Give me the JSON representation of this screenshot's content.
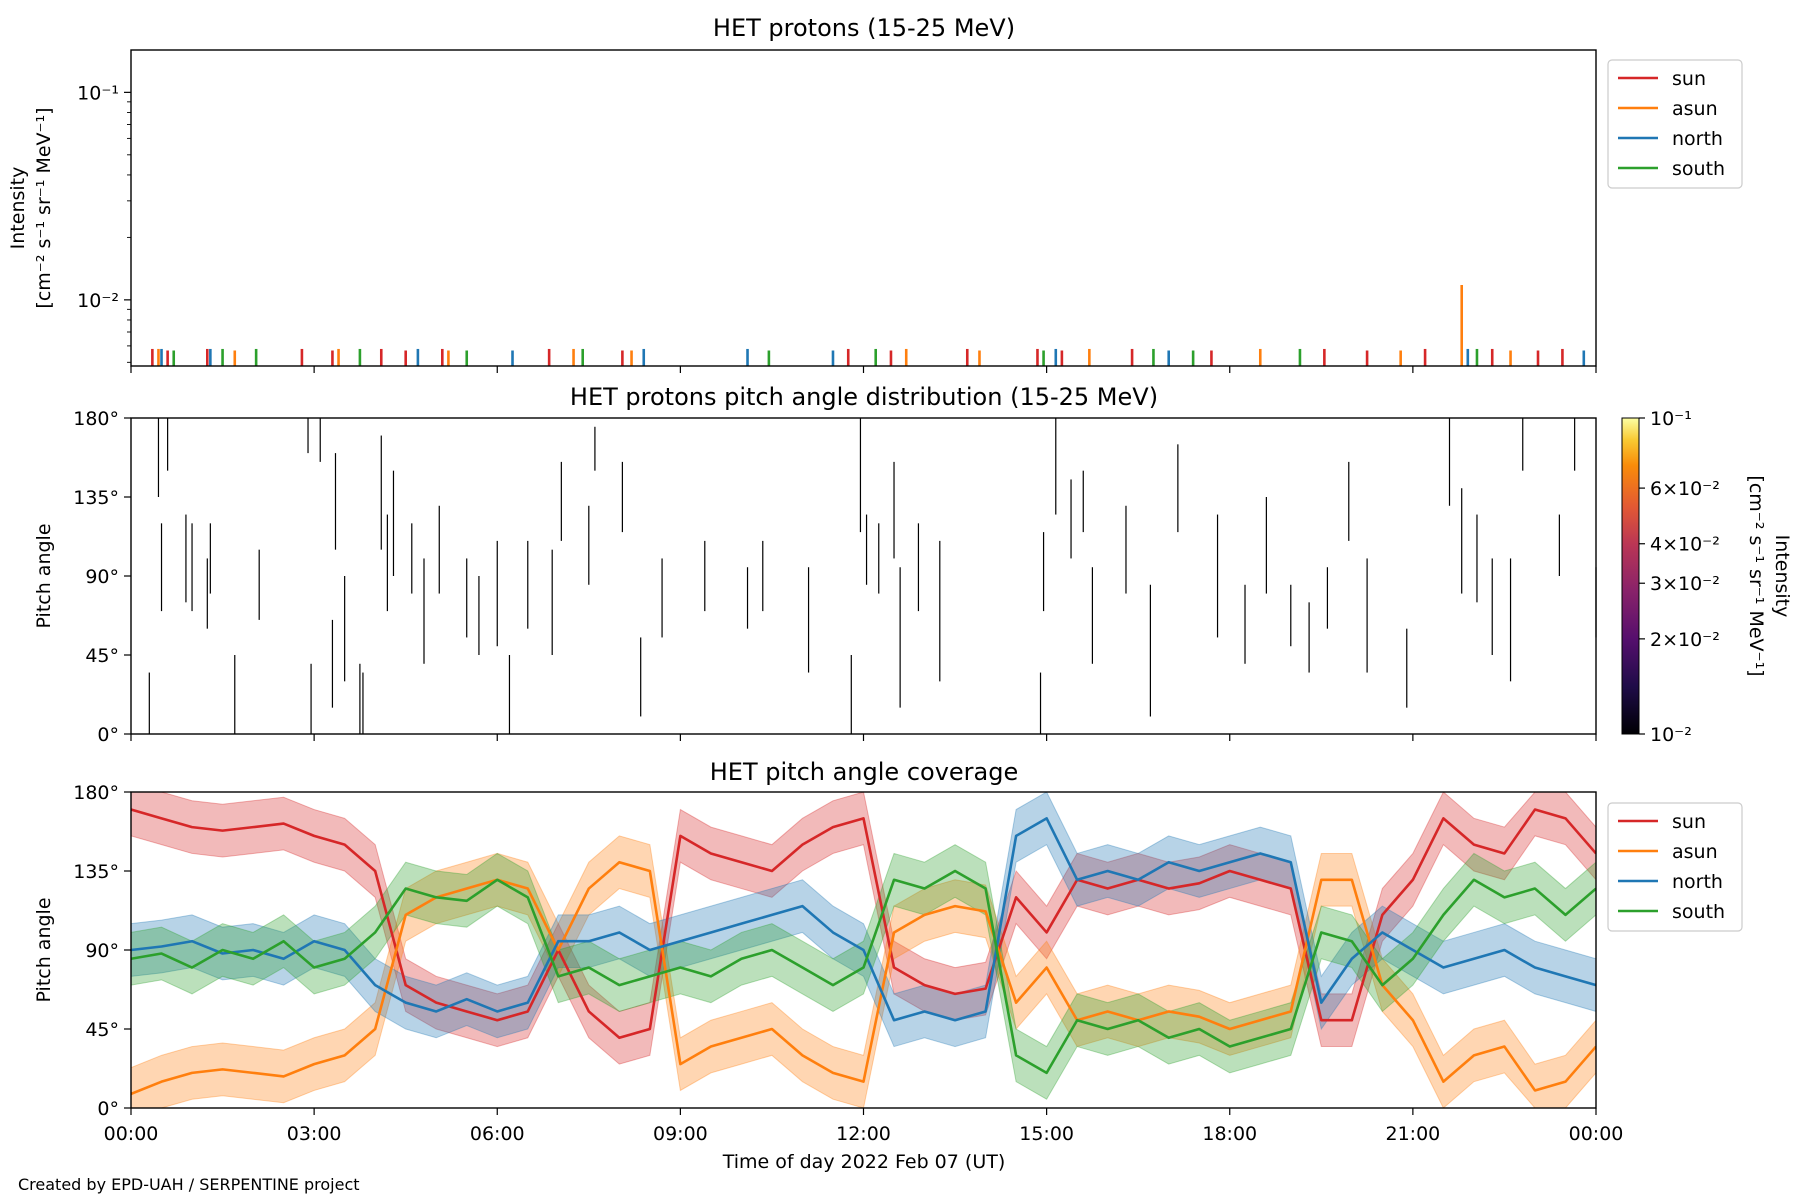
{
  "chart_data": [
    {
      "type": "line",
      "title": "HET protons (15-25 MeV)",
      "ylabel": "Intensity",
      "ylabel_units": "[cm⁻² s⁻¹ sr⁻¹ MeV⁻¹]",
      "yscale": "log",
      "ylim": [
        0.0048,
        0.16
      ],
      "yticks": [
        {
          "value": 0.01,
          "label": "10⁻²"
        },
        {
          "value": 0.1,
          "label": "10⁻¹"
        }
      ],
      "xlim": [
        0,
        24
      ],
      "legend": {
        "placement": "outside-right",
        "entries": [
          "sun",
          "asun",
          "north",
          "south"
        ]
      },
      "series": [
        {
          "name": "sun",
          "color": "#d62728",
          "spikes": [
            {
              "x": 0.35,
              "y": 0.0058
            },
            {
              "x": 0.6,
              "y": 0.0057
            },
            {
              "x": 1.25,
              "y": 0.0058
            },
            {
              "x": 2.8,
              "y": 0.0058
            },
            {
              "x": 3.3,
              "y": 0.0057
            },
            {
              "x": 4.1,
              "y": 0.0058
            },
            {
              "x": 4.5,
              "y": 0.0057
            },
            {
              "x": 5.1,
              "y": 0.0058
            },
            {
              "x": 6.85,
              "y": 0.0058
            },
            {
              "x": 8.05,
              "y": 0.0057
            },
            {
              "x": 11.75,
              "y": 0.0058
            },
            {
              "x": 12.45,
              "y": 0.0057
            },
            {
              "x": 13.7,
              "y": 0.0058
            },
            {
              "x": 14.85,
              "y": 0.0058
            },
            {
              "x": 15.25,
              "y": 0.0057
            },
            {
              "x": 16.4,
              "y": 0.0058
            },
            {
              "x": 17.7,
              "y": 0.0057
            },
            {
              "x": 19.55,
              "y": 0.0058
            },
            {
              "x": 20.25,
              "y": 0.0057
            },
            {
              "x": 21.2,
              "y": 0.0058
            },
            {
              "x": 22.3,
              "y": 0.0058
            },
            {
              "x": 23.05,
              "y": 0.0057
            },
            {
              "x": 23.45,
              "y": 0.0058
            }
          ]
        },
        {
          "name": "asun",
          "color": "#ff7f0e",
          "spikes": [
            {
              "x": 0.45,
              "y": 0.0058
            },
            {
              "x": 1.7,
              "y": 0.0057
            },
            {
              "x": 3.4,
              "y": 0.0058
            },
            {
              "x": 5.2,
              "y": 0.0057
            },
            {
              "x": 7.25,
              "y": 0.0058
            },
            {
              "x": 8.2,
              "y": 0.0057
            },
            {
              "x": 12.7,
              "y": 0.0058
            },
            {
              "x": 13.9,
              "y": 0.0057
            },
            {
              "x": 15.7,
              "y": 0.0058
            },
            {
              "x": 18.5,
              "y": 0.0058
            },
            {
              "x": 20.8,
              "y": 0.0057
            },
            {
              "x": 21.8,
              "y": 0.0118
            },
            {
              "x": 22.6,
              "y": 0.0057
            }
          ]
        },
        {
          "name": "north",
          "color": "#1f77b4",
          "spikes": [
            {
              "x": 0.5,
              "y": 0.0058
            },
            {
              "x": 1.3,
              "y": 0.0058
            },
            {
              "x": 4.7,
              "y": 0.0058
            },
            {
              "x": 6.25,
              "y": 0.0057
            },
            {
              "x": 8.4,
              "y": 0.0058
            },
            {
              "x": 10.1,
              "y": 0.0058
            },
            {
              "x": 11.5,
              "y": 0.0057
            },
            {
              "x": 15.15,
              "y": 0.0058
            },
            {
              "x": 17.0,
              "y": 0.0057
            },
            {
              "x": 21.9,
              "y": 0.0058
            },
            {
              "x": 23.8,
              "y": 0.0057
            }
          ]
        },
        {
          "name": "south",
          "color": "#2ca02c",
          "spikes": [
            {
              "x": 0.7,
              "y": 0.0057
            },
            {
              "x": 1.5,
              "y": 0.0058
            },
            {
              "x": 2.05,
              "y": 0.0058
            },
            {
              "x": 3.75,
              "y": 0.0058
            },
            {
              "x": 5.5,
              "y": 0.0057
            },
            {
              "x": 7.4,
              "y": 0.0058
            },
            {
              "x": 10.45,
              "y": 0.0057
            },
            {
              "x": 12.2,
              "y": 0.0058
            },
            {
              "x": 14.95,
              "y": 0.0057
            },
            {
              "x": 16.75,
              "y": 0.0058
            },
            {
              "x": 17.4,
              "y": 0.0057
            },
            {
              "x": 19.15,
              "y": 0.0058
            },
            {
              "x": 22.05,
              "y": 0.0058
            }
          ]
        }
      ]
    },
    {
      "type": "heatmap",
      "title": "HET protons pitch angle distribution (15-25 MeV)",
      "ylabel": "Pitch angle",
      "ylim": [
        0,
        180
      ],
      "yticklabels": [
        "0°",
        "45°",
        "90°",
        "135°",
        "180°"
      ],
      "xlim": [
        0,
        24
      ],
      "colorbar": {
        "label": "Intensity",
        "units": "[cm⁻² s⁻¹ sr⁻¹ MeV⁻¹]",
        "scale": "log",
        "range": [
          0.01,
          0.1
        ],
        "colormap": "inferno",
        "tick_labels": [
          "10⁻²",
          "2×10⁻²",
          "3×10⁻²",
          "4×10⁻²",
          "6×10⁻²",
          "10⁻¹"
        ]
      },
      "segments": [
        [
          0.3,
          0,
          35
        ],
        [
          0.45,
          135,
          180
        ],
        [
          0.5,
          70,
          120
        ],
        [
          0.6,
          150,
          180
        ],
        [
          0.9,
          75,
          125
        ],
        [
          1.0,
          70,
          120
        ],
        [
          1.25,
          60,
          100
        ],
        [
          1.3,
          80,
          120
        ],
        [
          1.7,
          0,
          45
        ],
        [
          2.1,
          65,
          105
        ],
        [
          2.9,
          160,
          180
        ],
        [
          2.95,
          0,
          40
        ],
        [
          3.1,
          155,
          180
        ],
        [
          3.3,
          15,
          65
        ],
        [
          3.35,
          105,
          160
        ],
        [
          3.5,
          30,
          90
        ],
        [
          3.75,
          0,
          40
        ],
        [
          3.8,
          0,
          35
        ],
        [
          4.1,
          105,
          170
        ],
        [
          4.2,
          70,
          125
        ],
        [
          4.3,
          90,
          150
        ],
        [
          4.6,
          80,
          120
        ],
        [
          4.8,
          40,
          100
        ],
        [
          5.05,
          80,
          130
        ],
        [
          5.5,
          55,
          100
        ],
        [
          5.7,
          45,
          90
        ],
        [
          6.0,
          50,
          110
        ],
        [
          6.2,
          0,
          45
        ],
        [
          6.5,
          60,
          110
        ],
        [
          6.9,
          45,
          105
        ],
        [
          7.05,
          110,
          155
        ],
        [
          7.5,
          85,
          130
        ],
        [
          7.6,
          150,
          175
        ],
        [
          8.05,
          115,
          155
        ],
        [
          8.35,
          10,
          55
        ],
        [
          8.7,
          55,
          100
        ],
        [
          9.4,
          70,
          110
        ],
        [
          10.1,
          60,
          95
        ],
        [
          10.35,
          70,
          110
        ],
        [
          11.1,
          35,
          95
        ],
        [
          11.8,
          0,
          45
        ],
        [
          11.95,
          115,
          180
        ],
        [
          12.05,
          85,
          125
        ],
        [
          12.25,
          80,
          120
        ],
        [
          12.5,
          100,
          155
        ],
        [
          12.6,
          15,
          95
        ],
        [
          12.9,
          70,
          120
        ],
        [
          13.25,
          30,
          110
        ],
        [
          14.9,
          0,
          35
        ],
        [
          14.95,
          70,
          115
        ],
        [
          15.15,
          125,
          180
        ],
        [
          15.4,
          100,
          145
        ],
        [
          15.6,
          115,
          150
        ],
        [
          15.75,
          40,
          95
        ],
        [
          16.3,
          80,
          130
        ],
        [
          16.7,
          10,
          85
        ],
        [
          17.15,
          115,
          165
        ],
        [
          17.8,
          55,
          125
        ],
        [
          18.25,
          40,
          85
        ],
        [
          18.6,
          80,
          135
        ],
        [
          19.0,
          50,
          85
        ],
        [
          19.3,
          35,
          75
        ],
        [
          19.6,
          60,
          95
        ],
        [
          19.95,
          110,
          155
        ],
        [
          20.25,
          35,
          100
        ],
        [
          20.9,
          15,
          60
        ],
        [
          21.6,
          130,
          180
        ],
        [
          21.8,
          80,
          140
        ],
        [
          22.05,
          75,
          125
        ],
        [
          22.3,
          45,
          100
        ],
        [
          22.6,
          30,
          100
        ],
        [
          22.8,
          150,
          180
        ],
        [
          23.4,
          90,
          125
        ],
        [
          23.65,
          150,
          180
        ],
        [
          24.0,
          55,
          95
        ]
      ]
    },
    {
      "type": "line",
      "title": "HET pitch angle coverage",
      "ylabel": "Pitch angle",
      "xlabel": "Time of day 2022 Feb 07 (UT)",
      "ylim": [
        0,
        180
      ],
      "yticklabels": [
        "0°",
        "45°",
        "90°",
        "135°",
        "180°"
      ],
      "xlim": [
        0,
        24
      ],
      "xticklabels": [
        "00:00",
        "03:00",
        "06:00",
        "09:00",
        "12:00",
        "15:00",
        "18:00",
        "21:00",
        "00:00"
      ],
      "band_halfwidth": 15,
      "legend": {
        "placement": "outside-right",
        "entries": [
          "sun",
          "asun",
          "north",
          "south"
        ]
      },
      "x": [
        0,
        0.5,
        1,
        1.5,
        2,
        2.5,
        3,
        3.5,
        4,
        4.5,
        5,
        5.5,
        6,
        6.5,
        7,
        7.5,
        8,
        8.5,
        9,
        9.5,
        10,
        10.5,
        11,
        11.5,
        12,
        12.5,
        13,
        13.5,
        14,
        14.5,
        15,
        15.5,
        16,
        16.5,
        17,
        17.5,
        18,
        18.5,
        19,
        19.5,
        20,
        20.5,
        21,
        21.5,
        22,
        22.5,
        23,
        23.5,
        24
      ],
      "series": [
        {
          "name": "sun",
          "color": "#d62728",
          "values": [
            170,
            165,
            160,
            158,
            160,
            162,
            155,
            150,
            135,
            70,
            60,
            55,
            50,
            55,
            90,
            55,
            40,
            45,
            155,
            145,
            140,
            135,
            150,
            160,
            165,
            80,
            70,
            65,
            68,
            120,
            100,
            130,
            125,
            130,
            125,
            128,
            135,
            130,
            125,
            50,
            50,
            110,
            130,
            165,
            150,
            145,
            170,
            165,
            145
          ]
        },
        {
          "name": "asun",
          "color": "#ff7f0e",
          "values": [
            8,
            15,
            20,
            22,
            20,
            18,
            25,
            30,
            45,
            110,
            120,
            125,
            130,
            125,
            90,
            125,
            140,
            135,
            25,
            35,
            40,
            45,
            30,
            20,
            15,
            100,
            110,
            115,
            112,
            60,
            80,
            50,
            55,
            50,
            55,
            52,
            45,
            50,
            55,
            130,
            130,
            70,
            50,
            15,
            30,
            35,
            10,
            15,
            35
          ]
        },
        {
          "name": "north",
          "color": "#1f77b4",
          "values": [
            90,
            92,
            95,
            88,
            90,
            85,
            95,
            90,
            70,
            60,
            55,
            62,
            55,
            60,
            95,
            95,
            100,
            90,
            95,
            100,
            105,
            110,
            115,
            100,
            90,
            50,
            55,
            50,
            55,
            155,
            165,
            130,
            135,
            130,
            140,
            135,
            140,
            145,
            140,
            60,
            85,
            100,
            90,
            80,
            85,
            90,
            80,
            75,
            70
          ]
        },
        {
          "name": "south",
          "color": "#2ca02c",
          "values": [
            85,
            88,
            80,
            90,
            85,
            95,
            80,
            85,
            100,
            125,
            120,
            118,
            130,
            120,
            75,
            80,
            70,
            75,
            80,
            75,
            85,
            90,
            80,
            70,
            80,
            130,
            125,
            135,
            125,
            30,
            20,
            50,
            45,
            50,
            40,
            45,
            35,
            40,
            45,
            100,
            95,
            70,
            85,
            110,
            130,
            120,
            125,
            110,
            125
          ]
        }
      ]
    }
  ],
  "footer": {
    "credit": "Created by EPD-UAH / SERPENTINE project"
  }
}
